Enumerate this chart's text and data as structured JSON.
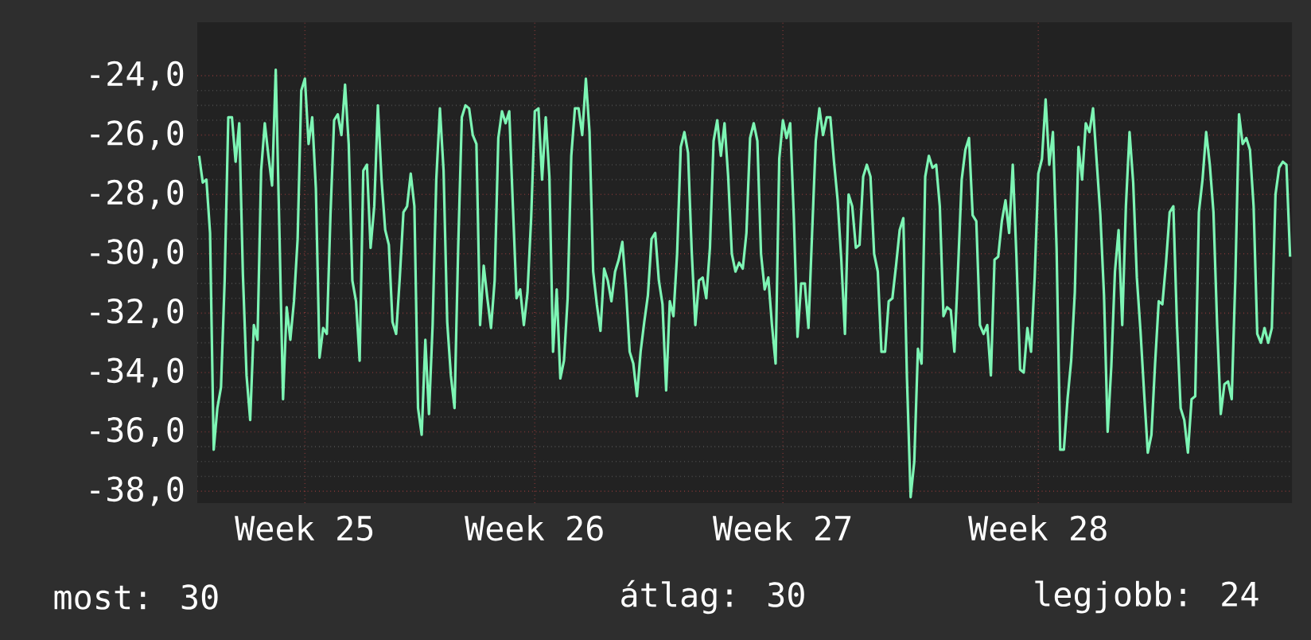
{
  "chart_data": {
    "type": "line",
    "categories": [
      null,
      null,
      null,
      null,
      null,
      null,
      null,
      null,
      null,
      null,
      null,
      null,
      null,
      null,
      null,
      null,
      null,
      null,
      null,
      null,
      null,
      null,
      null,
      null,
      null,
      null,
      null,
      null,
      null,
      "Week 25",
      null,
      null,
      null,
      null,
      null,
      null,
      null,
      null,
      null,
      null,
      null,
      null,
      null,
      null,
      null,
      null,
      null,
      null,
      null,
      null,
      null,
      null,
      null,
      null,
      null,
      null,
      null,
      null,
      null,
      null,
      null,
      null,
      null,
      null,
      null,
      null,
      null,
      null,
      null,
      null,
      null,
      null,
      null,
      null,
      null,
      null,
      null,
      null,
      null,
      null,
      null,
      null,
      null,
      null,
      null,
      null,
      null,
      null,
      null,
      null,
      null,
      null,
      "Week 26",
      null,
      null,
      null,
      null,
      null,
      null,
      null,
      null,
      null,
      null,
      null,
      null,
      null,
      null,
      null,
      null,
      null,
      null,
      null,
      null,
      null,
      null,
      null,
      null,
      null,
      null,
      null,
      null,
      null,
      null,
      null,
      null,
      null,
      null,
      null,
      null,
      null,
      null,
      null,
      null,
      null,
      null,
      null,
      null,
      null,
      null,
      null,
      null,
      null,
      null,
      null,
      null,
      null,
      null,
      null,
      null,
      null,
      null,
      null,
      null,
      null,
      null,
      null,
      null,
      null,
      null,
      null,
      "Week 27",
      null,
      null,
      null,
      null,
      null,
      null,
      null,
      null,
      null,
      null,
      null,
      null,
      null,
      null,
      null,
      null,
      null,
      null,
      null,
      null,
      null,
      null,
      null,
      null,
      null,
      null,
      null,
      null,
      null,
      null,
      null,
      null,
      null,
      null,
      null,
      null,
      null,
      null,
      null,
      null,
      null,
      null,
      null,
      null,
      null,
      null,
      null,
      null,
      null,
      null,
      null,
      null,
      null,
      null,
      null,
      null,
      null,
      null,
      null,
      null,
      null,
      null,
      null,
      null,
      null,
      null,
      null,
      null,
      null,
      "Week 28",
      null,
      null,
      null,
      null,
      null,
      null,
      null,
      null,
      null,
      null,
      null,
      null,
      null,
      null,
      null,
      null,
      null,
      null,
      null,
      null,
      null,
      null,
      null,
      null,
      null,
      null,
      null,
      null,
      null,
      null,
      null,
      null,
      null,
      null,
      null,
      null,
      null,
      null,
      null,
      null,
      null,
      null,
      null,
      null,
      null,
      null,
      null,
      null,
      null,
      null,
      null,
      null,
      null,
      null,
      null,
      null,
      null,
      null,
      null,
      null,
      null,
      null,
      null,
      null,
      null,
      null,
      null,
      null,
      null
    ],
    "series": [
      {
        "color": "#7df5b4",
        "values": [
          -26.7,
          -27.6,
          -27.5,
          -29.3,
          -36.6,
          -35.2,
          -34.5,
          -30.9,
          -25.4,
          -25.4,
          -26.9,
          -25.6,
          -30.7,
          -34.1,
          -35.6,
          -32.4,
          -32.9,
          -27.2,
          -25.6,
          -26.7,
          -27.7,
          -23.8,
          -29.2,
          -34.9,
          -31.8,
          -32.9,
          -31.6,
          -29.5,
          -24.5,
          -24.1,
          -26.3,
          -25.4,
          -27.8,
          -33.5,
          -32.5,
          -32.7,
          -28.7,
          -25.5,
          -25.3,
          -26.0,
          -24.3,
          -26.3,
          -30.9,
          -31.6,
          -33.6,
          -27.2,
          -27.0,
          -29.8,
          -28.4,
          -25.0,
          -27.5,
          -29.2,
          -29.7,
          -32.3,
          -32.7,
          -30.8,
          -28.6,
          -28.4,
          -27.3,
          -28.4,
          -35.2,
          -36.1,
          -32.9,
          -35.4,
          -32.4,
          -27.5,
          -25.1,
          -27.2,
          -32.3,
          -34.1,
          -35.2,
          -29.8,
          -25.4,
          -25.0,
          -25.1,
          -26.0,
          -26.3,
          -32.4,
          -30.4,
          -31.5,
          -32.5,
          -30.9,
          -26.1,
          -25.2,
          -25.6,
          -25.2,
          -28.4,
          -31.5,
          -31.2,
          -32.4,
          -31.3,
          -28.8,
          -25.2,
          -25.1,
          -27.5,
          -25.4,
          -27.4,
          -33.3,
          -31.2,
          -34.2,
          -33.6,
          -31.5,
          -26.7,
          -25.1,
          -25.1,
          -26.0,
          -24.1,
          -25.9,
          -30.6,
          -31.7,
          -32.6,
          -30.5,
          -30.9,
          -31.6,
          -30.6,
          -30.2,
          -29.6,
          -31.2,
          -33.3,
          -33.7,
          -34.8,
          -33.3,
          -32.3,
          -31.4,
          -29.5,
          -29.3,
          -30.9,
          -31.7,
          -34.6,
          -31.6,
          -32.1,
          -30.0,
          -26.4,
          -25.9,
          -26.6,
          -29.9,
          -32.4,
          -30.9,
          -30.8,
          -31.5,
          -29.8,
          -26.2,
          -25.5,
          -26.7,
          -25.6,
          -27.4,
          -30.0,
          -30.6,
          -30.3,
          -30.5,
          -29.3,
          -26.1,
          -25.6,
          -26.2,
          -30.0,
          -31.2,
          -30.8,
          -32.4,
          -33.7,
          -26.8,
          -25.5,
          -26.1,
          -25.6,
          -28.8,
          -32.8,
          -31.0,
          -31.0,
          -32.5,
          -29.3,
          -26.2,
          -25.1,
          -26.0,
          -25.4,
          -25.4,
          -26.9,
          -28.2,
          -30.2,
          -32.7,
          -28.0,
          -28.4,
          -29.8,
          -29.7,
          -27.4,
          -27.0,
          -27.4,
          -30.0,
          -30.6,
          -33.3,
          -33.3,
          -31.6,
          -31.5,
          -30.4,
          -29.2,
          -28.8,
          -34.2,
          -38.2,
          -37.0,
          -33.2,
          -33.7,
          -27.4,
          -26.7,
          -27.1,
          -27.0,
          -28.4,
          -32.1,
          -31.8,
          -31.9,
          -33.3,
          -30.5,
          -27.5,
          -26.5,
          -26.1,
          -28.7,
          -28.9,
          -32.4,
          -32.7,
          -32.4,
          -34.1,
          -30.2,
          -30.1,
          -28.9,
          -28.2,
          -29.3,
          -27.0,
          -30.1,
          -33.9,
          -34.0,
          -32.5,
          -33.3,
          -30.8,
          -27.3,
          -26.8,
          -24.8,
          -27.0,
          -25.9,
          -29.8,
          -36.6,
          -36.6,
          -34.9,
          -33.6,
          -31.3,
          -26.4,
          -27.5,
          -25.6,
          -25.9,
          -25.1,
          -26.9,
          -28.7,
          -31.4,
          -36.0,
          -33.8,
          -30.6,
          -29.2,
          -32.4,
          -28.4,
          -25.9,
          -27.6,
          -30.8,
          -32.6,
          -34.7,
          -36.7,
          -36.1,
          -33.7,
          -31.6,
          -31.7,
          -30.3,
          -28.6,
          -28.4,
          -32.4,
          -35.2,
          -35.6,
          -36.7,
          -34.9,
          -34.8,
          -28.6,
          -27.5,
          -25.9,
          -27.0,
          -28.6,
          -32.4,
          -35.4,
          -34.4,
          -34.3,
          -34.9,
          -30.8,
          -25.3,
          -26.3,
          -26.1,
          -26.5,
          -28.4,
          -32.7,
          -33.0,
          -32.5,
          -33.0,
          -32.5,
          -28.0,
          -27.1,
          -26.9,
          -27.0,
          -30.1
        ]
      }
    ],
    "ylim": [
      -38.4,
      -22.2
    ],
    "yticks": [
      {
        "value": -38,
        "label": "-38,0"
      },
      {
        "value": -36,
        "label": "-36,0"
      },
      {
        "value": -34,
        "label": "-34,0"
      },
      {
        "value": -32,
        "label": "-32,0"
      },
      {
        "value": -30,
        "label": "-30,0"
      },
      {
        "value": -28,
        "label": "-28,0"
      },
      {
        "value": -26,
        "label": "-26,0"
      },
      {
        "value": -24,
        "label": "-24,0"
      }
    ],
    "grid": true,
    "line_style": "solid",
    "marker": "none",
    "annotations": [
      "most: 30",
      "átlag: 30",
      "legjobb: 24"
    ]
  }
}
